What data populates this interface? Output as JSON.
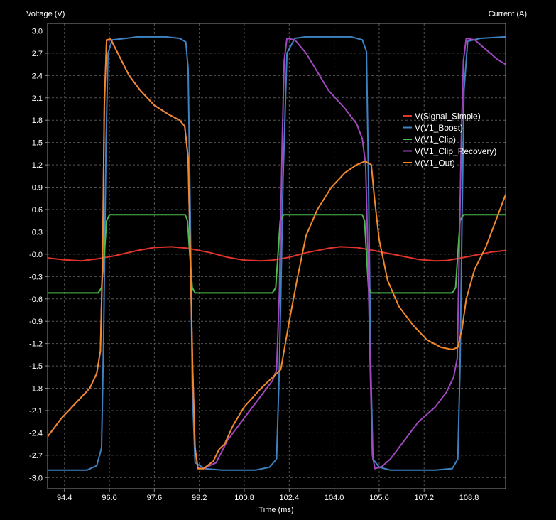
{
  "chart_data": {
    "type": "line",
    "y_axis_title": "Voltage (V)",
    "y2_axis_title": "Current (A)",
    "x_axis_title": "Time (ms)",
    "xlim": [
      93.8,
      110.1
    ],
    "ylim": [
      -3.15,
      3.1
    ],
    "x_ticks": [
      "94.4",
      "96.0",
      "97.6",
      "99.2",
      "100.8",
      "102.4",
      "104.0",
      "105.6",
      "107.2",
      "108.8"
    ],
    "x_tick_values": [
      94.4,
      96.0,
      97.6,
      99.2,
      100.8,
      102.4,
      104.0,
      105.6,
      107.2,
      108.8
    ],
    "y_ticks": [
      "3.0",
      "2.7",
      "2.4",
      "2.1",
      "1.8",
      "1.5",
      "1.2",
      "0.9",
      "0.6",
      "0.3",
      "-0.0",
      "-0.3",
      "-0.6",
      "-0.9",
      "-1.2",
      "-1.5",
      "-1.8",
      "-2.1",
      "-2.4",
      "-2.7",
      "-3.0"
    ],
    "y_tick_values": [
      3.0,
      2.7,
      2.4,
      2.1,
      1.8,
      1.5,
      1.2,
      0.9,
      0.6,
      0.3,
      0.0,
      -0.3,
      -0.6,
      -0.9,
      -1.2,
      -1.5,
      -1.8,
      -2.1,
      -2.4,
      -2.7,
      -3.0
    ],
    "grid": true,
    "legend_position": "right, upper-middle inside plot",
    "series": [
      {
        "name": "V(Signal_Simple)",
        "color": "#e0342b",
        "points": [
          [
            93.8,
            -0.05
          ],
          [
            94.4,
            -0.075
          ],
          [
            95.0,
            -0.09
          ],
          [
            95.6,
            -0.06
          ],
          [
            96.2,
            -0.02
          ],
          [
            97.0,
            0.05
          ],
          [
            97.6,
            0.09
          ],
          [
            98.2,
            0.1
          ],
          [
            98.8,
            0.08
          ],
          [
            99.6,
            0.02
          ],
          [
            100.2,
            -0.04
          ],
          [
            100.8,
            -0.08
          ],
          [
            101.4,
            -0.09
          ],
          [
            101.8,
            -0.08
          ],
          [
            102.4,
            -0.04
          ],
          [
            103.0,
            0.02
          ],
          [
            103.8,
            0.08
          ],
          [
            104.2,
            0.1
          ],
          [
            104.8,
            0.09
          ],
          [
            105.4,
            0.05
          ],
          [
            106.2,
            -0.01
          ],
          [
            107.0,
            -0.07
          ],
          [
            107.6,
            -0.09
          ],
          [
            108.0,
            -0.085
          ],
          [
            108.8,
            -0.03
          ],
          [
            109.6,
            0.03
          ],
          [
            110.1,
            0.05
          ]
        ]
      },
      {
        "name": "V(V1_Boost)",
        "color": "#3f82c2",
        "points": [
          [
            93.8,
            -2.9
          ],
          [
            95.2,
            -2.9
          ],
          [
            95.55,
            -2.84
          ],
          [
            95.72,
            -2.6
          ],
          [
            95.8,
            -1.0
          ],
          [
            95.88,
            1.5
          ],
          [
            95.95,
            2.7
          ],
          [
            96.1,
            2.88
          ],
          [
            96.6,
            2.9
          ],
          [
            97.0,
            2.92
          ],
          [
            98.0,
            2.92
          ],
          [
            98.5,
            2.9
          ],
          [
            98.72,
            2.85
          ],
          [
            98.8,
            2.5
          ],
          [
            98.88,
            0.5
          ],
          [
            98.95,
            -1.8
          ],
          [
            99.05,
            -2.8
          ],
          [
            99.4,
            -2.88
          ],
          [
            100.0,
            -2.9
          ],
          [
            101.2,
            -2.9
          ],
          [
            101.7,
            -2.86
          ],
          [
            101.95,
            -2.75
          ],
          [
            102.05,
            -1.5
          ],
          [
            102.18,
            1.0
          ],
          [
            102.32,
            2.7
          ],
          [
            102.6,
            2.9
          ],
          [
            103.0,
            2.92
          ],
          [
            104.6,
            2.92
          ],
          [
            105.0,
            2.88
          ],
          [
            105.15,
            2.72
          ],
          [
            105.22,
            1.0
          ],
          [
            105.3,
            -1.5
          ],
          [
            105.38,
            -2.75
          ],
          [
            105.6,
            -2.86
          ],
          [
            106.0,
            -2.9
          ],
          [
            107.6,
            -2.9
          ],
          [
            108.2,
            -2.88
          ],
          [
            108.4,
            -2.75
          ],
          [
            108.48,
            -1.5
          ],
          [
            108.55,
            0.5
          ],
          [
            108.62,
            2.2
          ],
          [
            108.75,
            2.86
          ],
          [
            109.2,
            2.9
          ],
          [
            110.1,
            2.92
          ]
        ]
      },
      {
        "name": "V(V1_Clip)",
        "color": "#4cba4c",
        "points": [
          [
            93.8,
            -0.52
          ],
          [
            95.6,
            -0.52
          ],
          [
            95.72,
            -0.45
          ],
          [
            95.82,
            0.0
          ],
          [
            95.9,
            0.45
          ],
          [
            96.0,
            0.53
          ],
          [
            98.7,
            0.53
          ],
          [
            98.78,
            0.45
          ],
          [
            98.86,
            0.0
          ],
          [
            98.95,
            -0.45
          ],
          [
            99.05,
            -0.52
          ],
          [
            101.8,
            -0.52
          ],
          [
            101.92,
            -0.45
          ],
          [
            102.0,
            0.0
          ],
          [
            102.08,
            0.45
          ],
          [
            102.2,
            0.53
          ],
          [
            105.0,
            0.53
          ],
          [
            105.08,
            0.45
          ],
          [
            105.15,
            0.0
          ],
          [
            105.22,
            -0.45
          ],
          [
            105.32,
            -0.52
          ],
          [
            108.2,
            -0.52
          ],
          [
            108.32,
            -0.45
          ],
          [
            108.4,
            0.0
          ],
          [
            108.48,
            0.45
          ],
          [
            108.6,
            0.53
          ],
          [
            110.1,
            0.53
          ]
        ]
      },
      {
        "name": "V(V1_Clip_Recovery)",
        "color": "#a048be",
        "points": [
          [
            93.8,
            -2.45
          ],
          [
            94.3,
            -2.2
          ],
          [
            94.8,
            -2.0
          ],
          [
            95.3,
            -1.8
          ],
          [
            95.55,
            -1.6
          ],
          [
            95.68,
            -1.3
          ],
          [
            95.76,
            0.0
          ],
          [
            95.82,
            2.0
          ],
          [
            95.9,
            2.87
          ],
          [
            96.05,
            2.88
          ],
          [
            96.3,
            2.7
          ],
          [
            96.7,
            2.4
          ],
          [
            97.1,
            2.2
          ],
          [
            97.6,
            2.0
          ],
          [
            98.1,
            1.88
          ],
          [
            98.5,
            1.8
          ],
          [
            98.68,
            1.72
          ],
          [
            98.8,
            1.3
          ],
          [
            98.88,
            0.0
          ],
          [
            98.96,
            -1.5
          ],
          [
            99.05,
            -2.6
          ],
          [
            99.15,
            -2.87
          ],
          [
            99.35,
            -2.88
          ],
          [
            99.8,
            -2.8
          ],
          [
            100.2,
            -2.5
          ],
          [
            100.8,
            -2.2
          ],
          [
            101.4,
            -1.9
          ],
          [
            101.8,
            -1.7
          ],
          [
            101.95,
            -1.55
          ],
          [
            102.05,
            -0.5
          ],
          [
            102.15,
            1.5
          ],
          [
            102.22,
            2.6
          ],
          [
            102.32,
            2.9
          ],
          [
            102.6,
            2.88
          ],
          [
            103.0,
            2.7
          ],
          [
            103.4,
            2.45
          ],
          [
            103.8,
            2.2
          ],
          [
            104.4,
            1.95
          ],
          [
            104.8,
            1.75
          ],
          [
            105.0,
            1.55
          ],
          [
            105.12,
            1.2
          ],
          [
            105.2,
            0.0
          ],
          [
            105.28,
            -1.5
          ],
          [
            105.36,
            -2.7
          ],
          [
            105.45,
            -2.88
          ],
          [
            105.7,
            -2.85
          ],
          [
            106.0,
            -2.75
          ],
          [
            106.5,
            -2.5
          ],
          [
            107.0,
            -2.25
          ],
          [
            107.6,
            -2.05
          ],
          [
            108.0,
            -1.85
          ],
          [
            108.25,
            -1.65
          ],
          [
            108.38,
            -1.4
          ],
          [
            108.45,
            0.0
          ],
          [
            108.52,
            1.5
          ],
          [
            108.6,
            2.6
          ],
          [
            108.7,
            2.9
          ],
          [
            109.0,
            2.88
          ],
          [
            109.4,
            2.75
          ],
          [
            109.8,
            2.62
          ],
          [
            110.1,
            2.55
          ]
        ]
      },
      {
        "name": "V(V1_Out)",
        "color": "#f1892c",
        "points": [
          [
            93.8,
            -2.45
          ],
          [
            94.3,
            -2.2
          ],
          [
            94.8,
            -2.0
          ],
          [
            95.3,
            -1.8
          ],
          [
            95.55,
            -1.6
          ],
          [
            95.68,
            -1.3
          ],
          [
            95.76,
            0.0
          ],
          [
            95.82,
            2.0
          ],
          [
            95.9,
            2.88
          ],
          [
            96.05,
            2.89
          ],
          [
            96.3,
            2.7
          ],
          [
            96.7,
            2.4
          ],
          [
            97.1,
            2.2
          ],
          [
            97.6,
            2.0
          ],
          [
            98.1,
            1.88
          ],
          [
            98.5,
            1.8
          ],
          [
            98.68,
            1.72
          ],
          [
            98.8,
            1.3
          ],
          [
            98.88,
            0.0
          ],
          [
            98.96,
            -1.5
          ],
          [
            99.05,
            -2.6
          ],
          [
            99.15,
            -2.88
          ],
          [
            99.35,
            -2.88
          ],
          [
            99.7,
            -2.78
          ],
          [
            99.9,
            -2.62
          ],
          [
            100.1,
            -2.55
          ],
          [
            100.4,
            -2.3
          ],
          [
            100.8,
            -2.05
          ],
          [
            101.4,
            -1.8
          ],
          [
            101.9,
            -1.62
          ],
          [
            102.1,
            -1.55
          ],
          [
            102.4,
            -0.9
          ],
          [
            102.7,
            -0.3
          ],
          [
            103.0,
            0.25
          ],
          [
            103.4,
            0.6
          ],
          [
            103.9,
            0.9
          ],
          [
            104.4,
            1.1
          ],
          [
            104.8,
            1.2
          ],
          [
            105.1,
            1.25
          ],
          [
            105.32,
            1.2
          ],
          [
            105.42,
            0.8
          ],
          [
            105.6,
            0.2
          ],
          [
            105.9,
            -0.35
          ],
          [
            106.3,
            -0.7
          ],
          [
            106.8,
            -0.95
          ],
          [
            107.3,
            -1.15
          ],
          [
            107.8,
            -1.25
          ],
          [
            108.2,
            -1.28
          ],
          [
            108.4,
            -1.25
          ],
          [
            108.55,
            -1.0
          ],
          [
            108.7,
            -0.6
          ],
          [
            109.0,
            -0.2
          ],
          [
            109.4,
            0.1
          ],
          [
            109.8,
            0.5
          ],
          [
            110.1,
            0.8
          ]
        ]
      }
    ]
  }
}
